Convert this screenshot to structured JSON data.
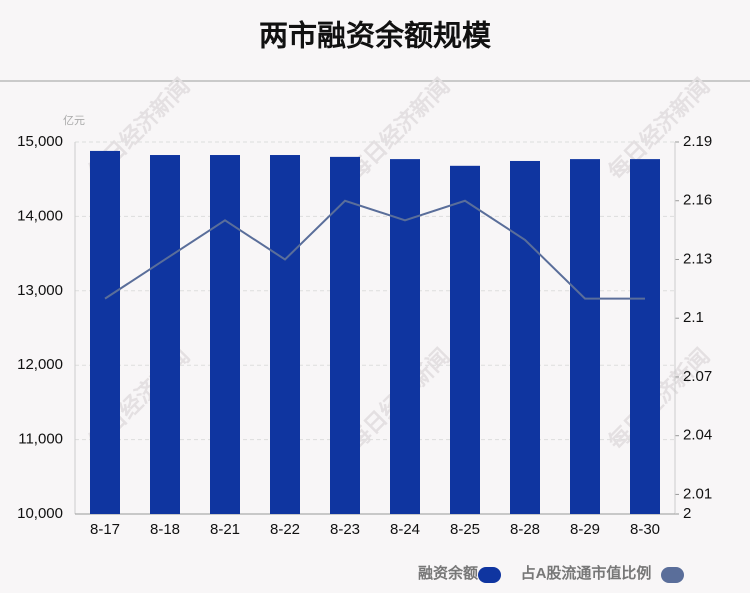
{
  "chart_data": {
    "type": "bar_line",
    "title": "两市融资余额规模",
    "y_unit": "亿元",
    "watermark": "每日经济新闻",
    "categories": [
      "8-17",
      "8-18",
      "8-21",
      "8-22",
      "8-23",
      "8-24",
      "8-25",
      "8-28",
      "8-29",
      "8-30"
    ],
    "series": [
      {
        "name": "融资余额",
        "color": "#0f35a0",
        "type": "bar",
        "values": [
          14880,
          14825,
          14825,
          14825,
          14800,
          14770,
          14680,
          14745,
          14770,
          14770
        ]
      },
      {
        "name": "占A股流通市值比例",
        "color": "#5a6e9a",
        "type": "line",
        "axis": "y2",
        "values": [
          2.11,
          2.13,
          2.15,
          2.13,
          2.16,
          2.15,
          2.16,
          2.14,
          2.11,
          2.11
        ]
      }
    ],
    "ylim": [
      10000,
      15000
    ],
    "yticks": [
      {
        "value": 10000,
        "label": "10,000"
      },
      {
        "value": 11000,
        "label": "11,000"
      },
      {
        "value": 12000,
        "label": "12,000"
      },
      {
        "value": 13000,
        "label": "13,000"
      },
      {
        "value": 14000,
        "label": "14,000"
      },
      {
        "value": 15000,
        "label": "15,000"
      }
    ],
    "y2lim": [
      2,
      2.19
    ],
    "y2ticks": [
      2,
      2.01,
      2.04,
      2.07,
      2.1,
      2.13,
      2.16,
      2.19
    ],
    "grid": true
  }
}
